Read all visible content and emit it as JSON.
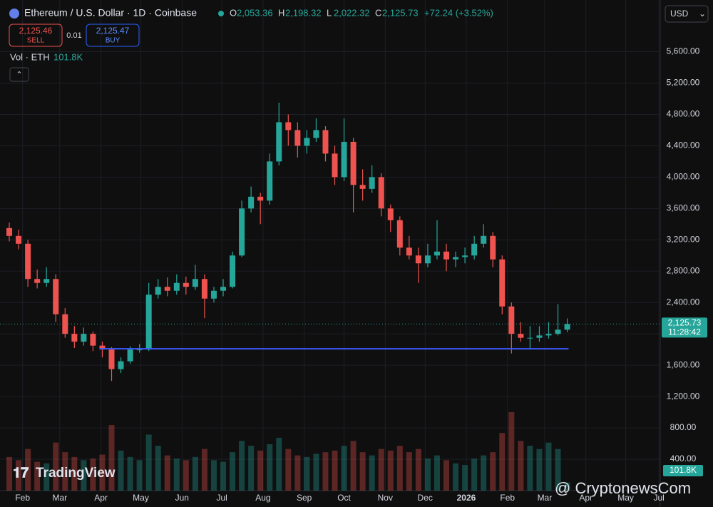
{
  "header": {
    "title": "Ethereum / U.S. Dollar · 1D · Coinbase",
    "ohlc": [
      {
        "key": "O",
        "value": "2,053.36"
      },
      {
        "key": "H",
        "value": "2,198.32"
      },
      {
        "key": "L",
        "value": "2,022.32"
      },
      {
        "key": "C",
        "value": "2,125.73"
      }
    ],
    "change": "+72.24 (+3.52%)",
    "currency": "USD",
    "sell": {
      "price": "2,125.46",
      "label": "SELL"
    },
    "spread": "0.01",
    "buy": {
      "price": "2,125.47",
      "label": "BUY"
    }
  },
  "chart_data": {
    "type": "candlestick",
    "up_color": "#26a69a",
    "down_color": "#ef5350",
    "xlim": [
      14,
      511
    ],
    "xticks": [
      {
        "value": 31,
        "label": "Feb"
      },
      {
        "value": 59,
        "label": "Mar"
      },
      {
        "value": 90,
        "label": "Apr"
      },
      {
        "value": 120,
        "label": "May"
      },
      {
        "value": 151,
        "label": "Jun"
      },
      {
        "value": 181,
        "label": "Jul"
      },
      {
        "value": 212,
        "label": "Aug"
      },
      {
        "value": 243,
        "label": "Sep"
      },
      {
        "value": 273,
        "label": "Oct"
      },
      {
        "value": 304,
        "label": "Nov"
      },
      {
        "value": 334,
        "label": "Dec"
      },
      {
        "value": 365,
        "label": "2026"
      },
      {
        "value": 396,
        "label": "Feb"
      },
      {
        "value": 424,
        "label": "Mar"
      },
      {
        "value": 455,
        "label": "Apr"
      },
      {
        "value": 485,
        "label": "May"
      },
      {
        "value": 510,
        "label": "Jul"
      }
    ],
    "ylim": [
      0,
      6260
    ],
    "yticks": [
      {
        "value": 400,
        "label": "400.00"
      },
      {
        "value": 800,
        "label": "800.00"
      },
      {
        "value": 1200,
        "label": "1,200.00"
      },
      {
        "value": 1600,
        "label": "1,600.00"
      },
      {
        "value": 2000,
        "label": "2,000.00"
      },
      {
        "value": 2400,
        "label": "2,400.00"
      },
      {
        "value": 2800,
        "label": "2,800.00"
      },
      {
        "value": 3200,
        "label": "3,200.00"
      },
      {
        "value": 3600,
        "label": "3,600.00"
      },
      {
        "value": 4000,
        "label": "4,000.00"
      },
      {
        "value": 4400,
        "label": "4,400.00"
      },
      {
        "value": 4800,
        "label": "4,800.00"
      },
      {
        "value": 5200,
        "label": "5,200.00"
      },
      {
        "value": 5600,
        "label": "5,600.00"
      }
    ],
    "x": [
      21,
      28,
      35,
      42,
      49,
      56,
      63,
      70,
      77,
      84,
      91,
      98,
      105,
      112,
      119,
      126,
      133,
      140,
      147,
      154,
      161,
      168,
      175,
      182,
      189,
      196,
      203,
      210,
      217,
      224,
      231,
      238,
      245,
      252,
      259,
      266,
      273,
      280,
      287,
      294,
      301,
      308,
      315,
      322,
      329,
      336,
      343,
      350,
      357,
      364,
      371,
      378,
      385,
      392,
      399,
      406,
      413,
      420,
      427,
      434,
      441
    ],
    "open": [
      3350,
      3250,
      3150,
      2700,
      2650,
      2700,
      2250,
      2000,
      1900,
      2000,
      1850,
      1800,
      1550,
      1650,
      1800,
      1800,
      2500,
      2600,
      2550,
      2650,
      2600,
      2700,
      2450,
      2550,
      2600,
      3000,
      3600,
      3750,
      3700,
      4200,
      4700,
      4600,
      4400,
      4500,
      4600,
      4300,
      4000,
      4450,
      3900,
      3850,
      4000,
      3600,
      3450,
      3100,
      3000,
      2900,
      3000,
      3050,
      2950,
      2980,
      3000,
      3150,
      3250,
      2950,
      2350,
      2000,
      1950,
      1950,
      1980,
      2000,
      2053.36
    ],
    "high": [
      3420,
      3330,
      3200,
      2820,
      2850,
      2760,
      2330,
      2100,
      2080,
      2030,
      1900,
      1830,
      1700,
      1840,
      1870,
      2650,
      2700,
      2720,
      2760,
      2730,
      2880,
      2760,
      2600,
      2700,
      3050,
      3700,
      3880,
      3800,
      4300,
      4950,
      4800,
      4700,
      4600,
      4750,
      4650,
      4400,
      4750,
      4500,
      4100,
      4150,
      4050,
      3650,
      3500,
      3250,
      3100,
      3150,
      3450,
      3150,
      3050,
      3100,
      3250,
      3400,
      3300,
      3000,
      2400,
      2150,
      2100,
      2100,
      2150,
      2380,
      2198.32
    ],
    "low": [
      3180,
      3080,
      2600,
      2580,
      2600,
      2150,
      1950,
      1820,
      1850,
      1780,
      1700,
      1400,
      1500,
      1620,
      1760,
      1780,
      2450,
      2480,
      2500,
      2500,
      2560,
      2200,
      2400,
      2480,
      2580,
      2980,
      3550,
      3400,
      3650,
      4150,
      4400,
      4250,
      4300,
      4450,
      4200,
      3900,
      3950,
      3550,
      3700,
      3800,
      3500,
      3300,
      3000,
      2950,
      2650,
      2850,
      2950,
      2800,
      2850,
      2900,
      2950,
      3100,
      2850,
      2250,
      1750,
      1900,
      1800,
      1900,
      1940,
      1980,
      2022.32
    ],
    "close": [
      3250,
      3150,
      2700,
      2650,
      2700,
      2250,
      2000,
      1900,
      2000,
      1850,
      1800,
      1550,
      1650,
      1800,
      1800,
      2500,
      2600,
      2550,
      2650,
      2600,
      2700,
      2450,
      2550,
      2600,
      3000,
      3600,
      3750,
      3700,
      4200,
      4700,
      4600,
      4400,
      4500,
      4600,
      4300,
      4000,
      4450,
      3900,
      3850,
      4000,
      3600,
      3450,
      3100,
      3000,
      2900,
      3000,
      3050,
      2950,
      2980,
      3000,
      3150,
      3250,
      2950,
      2350,
      2000,
      1950,
      1950,
      1980,
      2000,
      2053.36,
      2125.73
    ],
    "last_label": "2,125.73",
    "countdown": "11:28:42",
    "support_line": {
      "value": 1810,
      "x": [
        89,
        442
      ],
      "color": "#3d5afe"
    },
    "volume": {
      "name": "Vol · ETH",
      "last_label": "101.8K",
      "values": [
        420000,
        380000,
        520000,
        360000,
        340000,
        600000,
        480000,
        420000,
        380000,
        400000,
        450000,
        820000,
        500000,
        420000,
        380000,
        700000,
        560000,
        440000,
        400000,
        380000,
        420000,
        520000,
        380000,
        360000,
        480000,
        620000,
        560000,
        500000,
        580000,
        660000,
        520000,
        440000,
        420000,
        460000,
        480000,
        500000,
        560000,
        620000,
        480000,
        440000,
        520000,
        500000,
        560000,
        480000,
        520000,
        400000,
        440000,
        380000,
        340000,
        320000,
        400000,
        440000,
        480000,
        720000,
        980000,
        620000,
        560000,
        520000,
        600000,
        520000,
        101800
      ]
    },
    "watermark": "TradingView",
    "credit": "@ CryptonewsCom"
  }
}
